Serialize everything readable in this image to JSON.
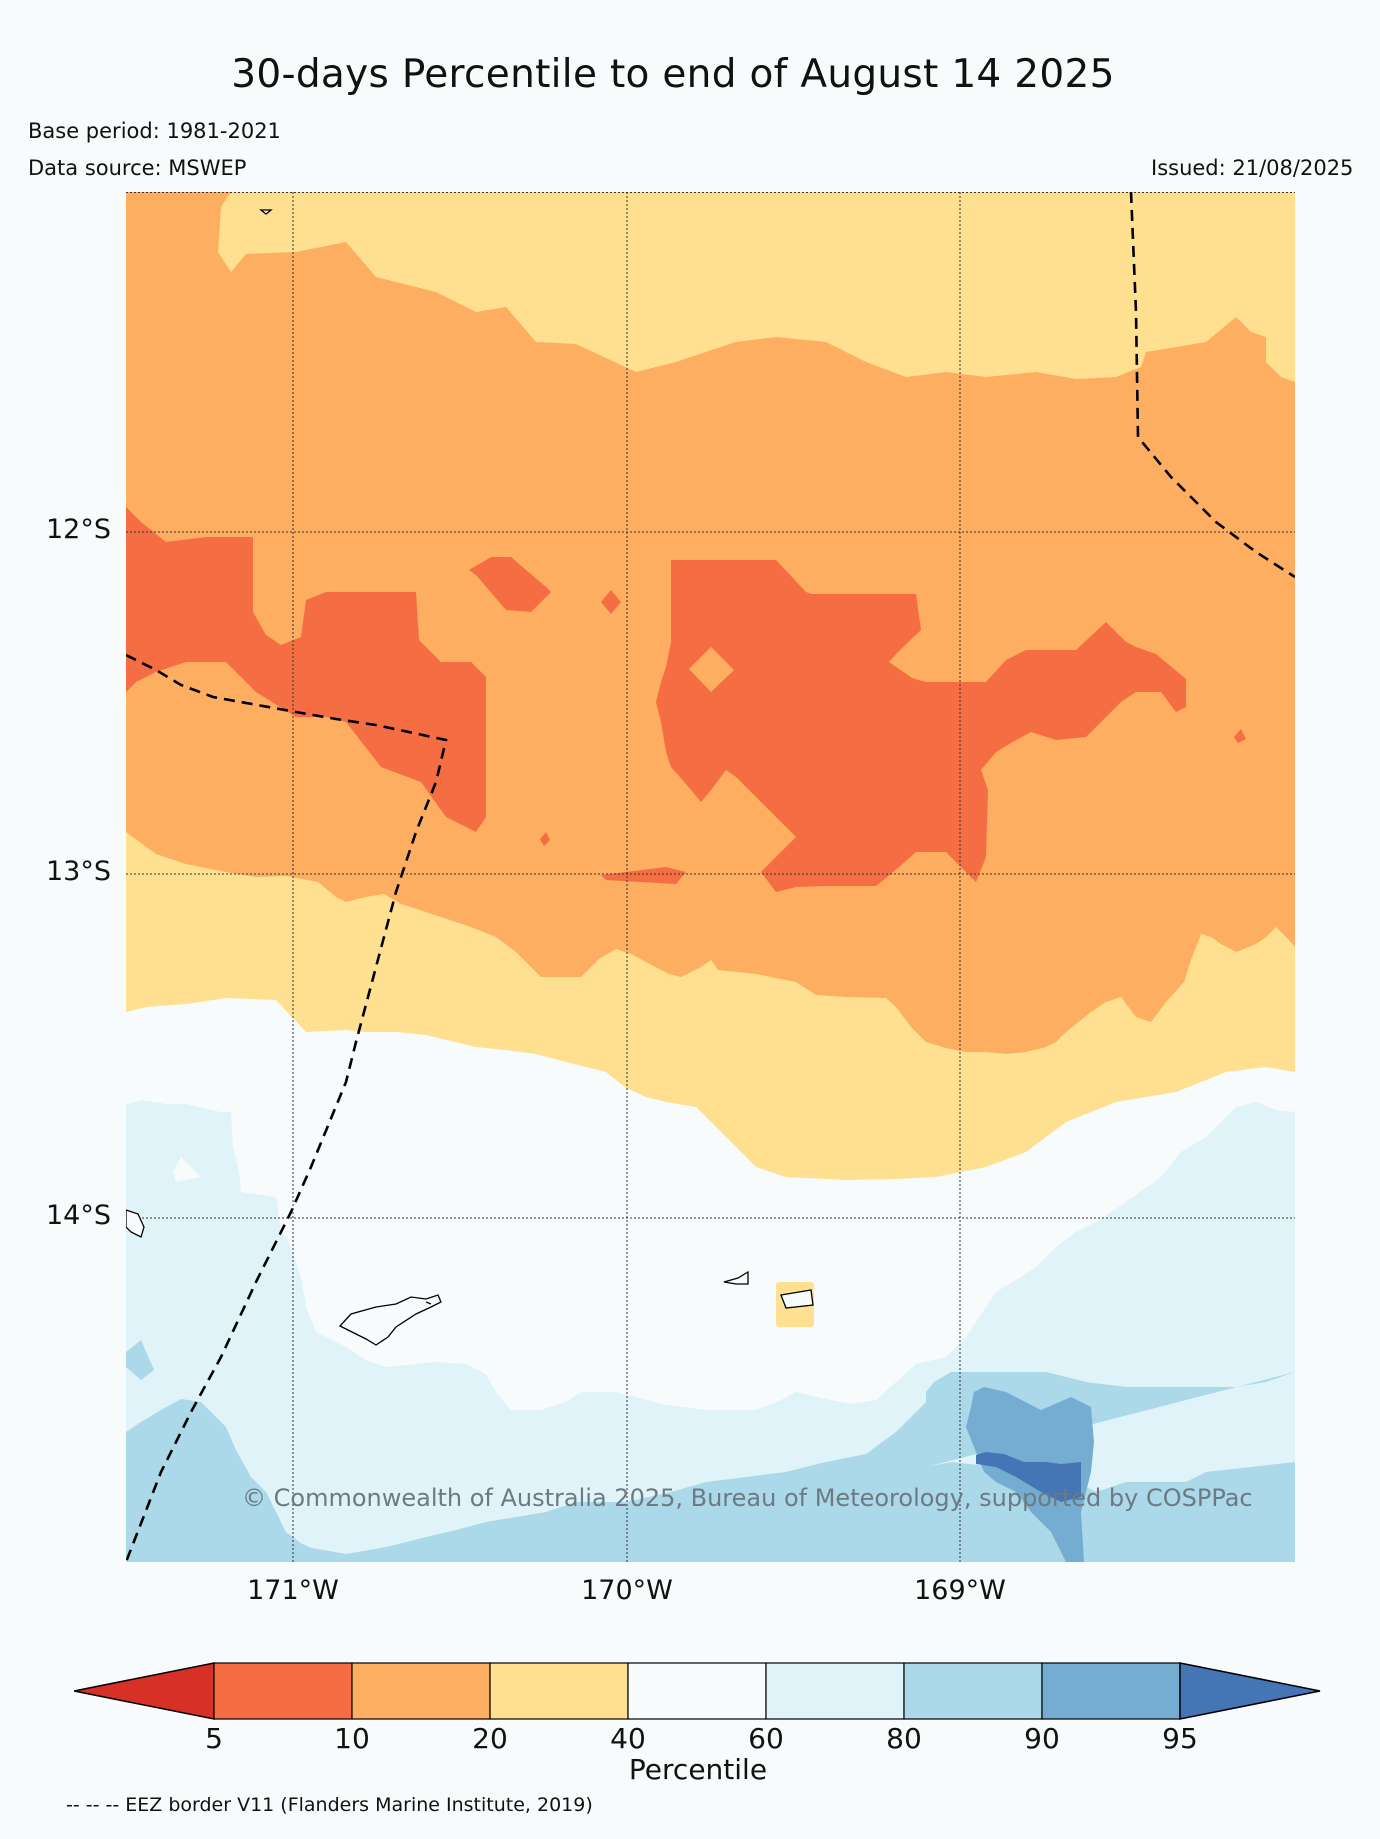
{
  "title": "30-days Percentile to end of August 14 2025",
  "base_period": "Base period: 1981-2021",
  "data_source": "Data source: MSWEP",
  "issued": "Issued: 21/08/2025",
  "map": {
    "lat_labels": [
      "12°S",
      "13°S",
      "14°S"
    ],
    "lon_labels": [
      "171°W",
      "170°W",
      "169°W"
    ],
    "credit": "© Commonwealth of Australia 2025, Bureau of Meteorology, supported by COSPPac",
    "legend_note": "-- -- -- EEZ border V11 (Flanders Marine Institute, 2019)"
  },
  "colorbar": {
    "label": "Percentile",
    "ticks": [
      "5",
      "10",
      "20",
      "40",
      "60",
      "80",
      "90",
      "95"
    ],
    "colors": {
      "below_5": "#d73027",
      "5_10": "#f46d43",
      "10_20": "#fdae61",
      "20_40": "#fee090",
      "40_60": "#f7fbfc",
      "60_80": "#e0f3f8",
      "80_90": "#abd9e9",
      "90_95": "#74add1",
      "above_95": "#4575b4"
    }
  }
}
